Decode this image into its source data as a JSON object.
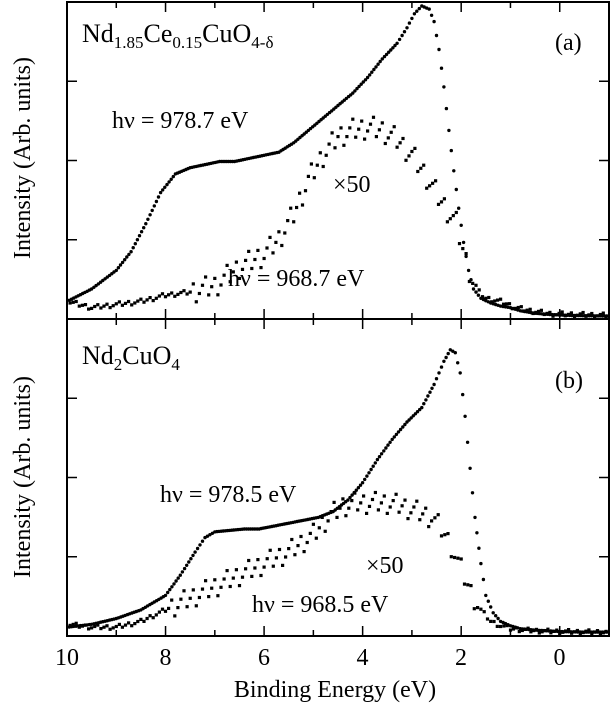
{
  "chart_data": [
    {
      "type": "scatter",
      "panel_label": "(a)",
      "sample": {
        "base": "Nd",
        "sub1": "1.85",
        "mid": "Ce",
        "sub2": "0.15",
        "tail": "CuO",
        "sub3": "4-δ"
      },
      "ylabel": "Intensity (Arb. units)",
      "xlim": [
        10,
        -1
      ],
      "series": [
        {
          "name": "hν = 978.7 eV",
          "label": "hν = 978.7 eV",
          "marker": "circle",
          "points": [
            [
              10.0,
              0.05
            ],
            [
              9.5,
              0.09
            ],
            [
              9.0,
              0.15
            ],
            [
              8.7,
              0.21
            ],
            [
              8.4,
              0.3
            ],
            [
              8.1,
              0.4
            ],
            [
              7.8,
              0.46
            ],
            [
              7.5,
              0.48
            ],
            [
              7.2,
              0.49
            ],
            [
              6.9,
              0.5
            ],
            [
              6.6,
              0.5
            ],
            [
              6.3,
              0.51
            ],
            [
              6.0,
              0.52
            ],
            [
              5.7,
              0.53
            ],
            [
              5.4,
              0.56
            ],
            [
              5.1,
              0.6
            ],
            [
              4.8,
              0.64
            ],
            [
              4.5,
              0.68
            ],
            [
              4.2,
              0.72
            ],
            [
              3.9,
              0.77
            ],
            [
              3.6,
              0.83
            ],
            [
              3.3,
              0.88
            ],
            [
              3.1,
              0.93
            ],
            [
              2.95,
              0.975
            ],
            [
              2.8,
              1.0
            ],
            [
              2.65,
              0.99
            ],
            [
              2.55,
              0.95
            ],
            [
              2.45,
              0.86
            ],
            [
              2.35,
              0.74
            ],
            [
              2.25,
              0.6
            ],
            [
              2.15,
              0.47
            ],
            [
              2.05,
              0.35
            ],
            [
              1.95,
              0.24
            ],
            [
              1.85,
              0.15
            ],
            [
              1.75,
              0.09
            ],
            [
              1.6,
              0.06
            ],
            [
              1.4,
              0.045
            ],
            [
              1.2,
              0.035
            ],
            [
              1.0,
              0.03
            ],
            [
              0.8,
              0.02
            ],
            [
              0.5,
              0.012
            ],
            [
              0.2,
              0.008
            ],
            [
              -0.2,
              0.005
            ],
            [
              -0.6,
              0.004
            ],
            [
              -1.0,
              0.003
            ]
          ]
        },
        {
          "name": "hν = 968.7 eV (×50)",
          "label": "hν = 968.7 eV",
          "multiplier": "×50",
          "marker": "square",
          "points": [
            [
              10.0,
              0.05
            ],
            [
              9.5,
              0.03
            ],
            [
              9.0,
              0.04
            ],
            [
              8.5,
              0.05
            ],
            [
              8.0,
              0.07
            ],
            [
              7.5,
              0.08
            ],
            [
              7.0,
              0.1
            ],
            [
              6.5,
              0.16
            ],
            [
              6.0,
              0.2
            ],
            [
              5.7,
              0.25
            ],
            [
              5.4,
              0.33
            ],
            [
              5.1,
              0.44
            ],
            [
              4.8,
              0.52
            ],
            [
              4.5,
              0.58
            ],
            [
              4.2,
              0.6
            ],
            [
              3.9,
              0.61
            ],
            [
              3.6,
              0.6
            ],
            [
              3.3,
              0.57
            ],
            [
              3.0,
              0.52
            ],
            [
              2.7,
              0.45
            ],
            [
              2.4,
              0.37
            ],
            [
              2.1,
              0.3
            ],
            [
              1.9,
              0.18
            ],
            [
              1.7,
              0.09
            ],
            [
              1.5,
              0.06
            ],
            [
              1.2,
              0.05
            ],
            [
              0.9,
              0.03
            ],
            [
              0.6,
              0.02
            ],
            [
              0.2,
              0.01
            ],
            [
              -0.3,
              0.008
            ],
            [
              -1.0,
              0.005
            ]
          ]
        }
      ]
    },
    {
      "type": "scatter",
      "panel_label": "(b)",
      "sample": {
        "base": "Nd",
        "sub1": "2",
        "mid": "CuO",
        "sub2": "4"
      },
      "ylabel": "Intensity (Arb. units)",
      "xlabel": "Binding Energy (eV)",
      "xlim": [
        10,
        -1
      ],
      "xticks": [
        "10",
        "8",
        "6",
        "4",
        "2",
        "0"
      ],
      "series": [
        {
          "name": "hν = 978.5 eV",
          "label": "hν = 978.5 eV",
          "marker": "circle",
          "points": [
            [
              10.0,
              0.02
            ],
            [
              9.5,
              0.03
            ],
            [
              9.0,
              0.05
            ],
            [
              8.5,
              0.08
            ],
            [
              8.0,
              0.13
            ],
            [
              7.7,
              0.2
            ],
            [
              7.4,
              0.28
            ],
            [
              7.2,
              0.33
            ],
            [
              7.0,
              0.35
            ],
            [
              6.7,
              0.355
            ],
            [
              6.4,
              0.36
            ],
            [
              6.1,
              0.36
            ],
            [
              5.8,
              0.37
            ],
            [
              5.5,
              0.38
            ],
            [
              5.2,
              0.39
            ],
            [
              4.9,
              0.4
            ],
            [
              4.6,
              0.42
            ],
            [
              4.3,
              0.46
            ],
            [
              4.0,
              0.52
            ],
            [
              3.7,
              0.6
            ],
            [
              3.4,
              0.67
            ],
            [
              3.1,
              0.73
            ],
            [
              2.8,
              0.78
            ],
            [
              2.55,
              0.86
            ],
            [
              2.35,
              0.94
            ],
            [
              2.22,
              0.98
            ],
            [
              2.12,
              0.97
            ],
            [
              2.02,
              0.9
            ],
            [
              1.92,
              0.75
            ],
            [
              1.82,
              0.57
            ],
            [
              1.72,
              0.4
            ],
            [
              1.6,
              0.24
            ],
            [
              1.5,
              0.13
            ],
            [
              1.35,
              0.07
            ],
            [
              1.2,
              0.04
            ],
            [
              1.0,
              0.025
            ],
            [
              0.8,
              0.015
            ],
            [
              0.5,
              0.01
            ],
            [
              0.0,
              0.005
            ],
            [
              -0.5,
              0.003
            ],
            [
              -1.0,
              0.003
            ]
          ]
        },
        {
          "name": "hν = 968.5 eV (×50)",
          "label": "hν = 968.5 eV",
          "multiplier": "×50",
          "marker": "square",
          "points": [
            [
              10.0,
              0.03
            ],
            [
              9.5,
              0.02
            ],
            [
              9.0,
              0.02
            ],
            [
              8.5,
              0.04
            ],
            [
              8.0,
              0.08
            ],
            [
              7.5,
              0.12
            ],
            [
              7.0,
              0.16
            ],
            [
              6.5,
              0.2
            ],
            [
              6.0,
              0.24
            ],
            [
              5.5,
              0.28
            ],
            [
              5.0,
              0.34
            ],
            [
              4.7,
              0.4
            ],
            [
              4.4,
              0.44
            ],
            [
              4.1,
              0.45
            ],
            [
              3.8,
              0.45
            ],
            [
              3.5,
              0.45
            ],
            [
              3.2,
              0.44
            ],
            [
              2.9,
              0.42
            ],
            [
              2.6,
              0.4
            ],
            [
              2.4,
              0.36
            ],
            [
              2.2,
              0.3
            ],
            [
              2.0,
              0.22
            ],
            [
              1.8,
              0.14
            ],
            [
              1.6,
              0.08
            ],
            [
              1.4,
              0.04
            ],
            [
              1.2,
              0.025
            ],
            [
              1.0,
              0.015
            ],
            [
              0.7,
              0.01
            ],
            [
              0.3,
              0.006
            ],
            [
              -0.3,
              0.004
            ],
            [
              -1.0,
              0.003
            ]
          ]
        }
      ]
    }
  ]
}
